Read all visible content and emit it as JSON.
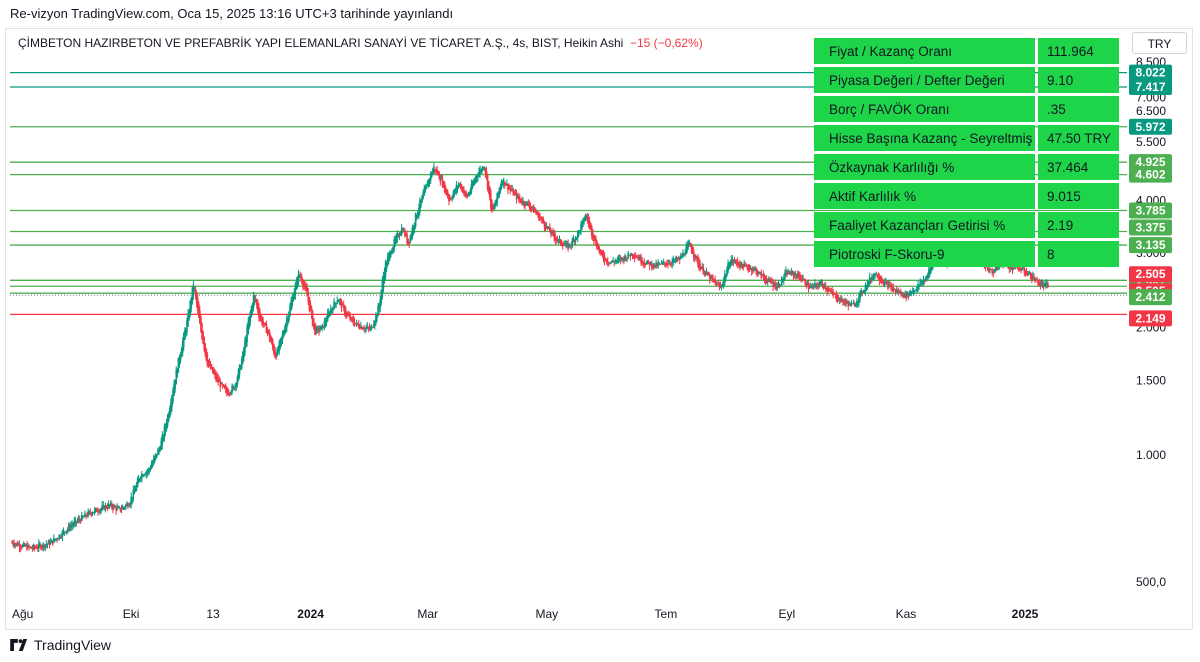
{
  "header": {
    "published": "Re-vizyon TradingView.com, Oca 15, 2025 13:16 UTC+3 tarihinde yayınlandı",
    "symbol": "ÇİMBETON HAZIRBETON VE PREFABRİK YAPI ELEMANLARI SANAYİ VE TİCARET A.Ş., 4s, BIST, Heikin Ashi",
    "change": "−15 (−0,62%)",
    "currency": "TRY"
  },
  "table": [
    {
      "k": "Fiyat / Kazanç Oranı",
      "v": "111.964"
    },
    {
      "k": "Piyasa Değeri / Defter Değeri",
      "v": "9.10"
    },
    {
      "k": "Borç / FAVÖK Oranı",
      "v": ".35"
    },
    {
      "k": "Hisse Başına Kazanç - Seyreltmiş",
      "v": "47.50  TRY"
    },
    {
      "k": "Özkaynak Karlılığı %",
      "v": "37.464"
    },
    {
      "k": "Aktif Karlılık %",
      "v": "9.015"
    },
    {
      "k": "Faaliyet Kazançları Getirisi %",
      "v": "2.19"
    },
    {
      "k": "Piotroski F-Skoru-9",
      "v": "8"
    }
  ],
  "footer": {
    "brand": "TradingView"
  },
  "chart_data": {
    "type": "line",
    "style": "Heikin Ashi candles (4h)",
    "y_scale": "log",
    "ylim": [
      450,
      9200
    ],
    "y_ticks": [
      {
        "value": 8500,
        "label": "8.500"
      },
      {
        "value": 7500,
        "label": "7.500"
      },
      {
        "value": 7000,
        "label": "7.000"
      },
      {
        "value": 6500,
        "label": "6.500"
      },
      {
        "value": 5500,
        "label": "5.500"
      },
      {
        "value": 5000,
        "label": "5.000"
      },
      {
        "value": 4500,
        "label": "4.500"
      },
      {
        "value": 4000,
        "label": "4.000"
      },
      {
        "value": 3500,
        "label": "3.500"
      },
      {
        "value": 3000,
        "label": "3.000"
      },
      {
        "value": 2500,
        "label": "2.500"
      },
      {
        "value": 2000,
        "label": "2.000"
      },
      {
        "value": 1500,
        "label": "1.500"
      },
      {
        "value": 1000,
        "label": "1.000"
      },
      {
        "value": 500,
        "label": "500,0"
      }
    ],
    "x_ticks": [
      {
        "t": 0,
        "label": "Ağu",
        "bold": false
      },
      {
        "t": 61,
        "label": "Eki",
        "bold": false
      },
      {
        "t": 103,
        "label": "13",
        "bold": false
      },
      {
        "t": 153,
        "label": "2024",
        "bold": true
      },
      {
        "t": 213,
        "label": "Mar",
        "bold": false
      },
      {
        "t": 274,
        "label": "May",
        "bold": false
      },
      {
        "t": 335,
        "label": "Tem",
        "bold": false
      },
      {
        "t": 397,
        "label": "Eyl",
        "bold": false
      },
      {
        "t": 458,
        "label": "Kas",
        "bold": false
      },
      {
        "t": 519,
        "label": "2025",
        "bold": true
      }
    ],
    "x_range": [
      0,
      620
    ],
    "levels": [
      {
        "value": 8022,
        "label": "8.022",
        "color": "#089981"
      },
      {
        "value": 7417,
        "label": "7.417",
        "color": "#089981"
      },
      {
        "value": 5972,
        "label": "5.972",
        "color": "#4caf50"
      },
      {
        "value": 4925,
        "label": "4.925",
        "color": "#4caf50"
      },
      {
        "value": 4602,
        "label": "4.602",
        "color": "#4caf50"
      },
      {
        "value": 3785,
        "label": "3.785",
        "color": "#4caf50"
      },
      {
        "value": 3375,
        "label": "3.375",
        "color": "#4caf50"
      },
      {
        "value": 3135,
        "label": "3.135",
        "color": "#4caf50"
      },
      {
        "value": 2587,
        "label": "2.587",
        "color": "#4caf50"
      },
      {
        "value": 2505,
        "label": "2.505",
        "color": "#4caf50"
      },
      {
        "value": 2412,
        "label": "2.412",
        "color": "#4caf50"
      },
      {
        "value": 2149,
        "label": "2.149",
        "color": "#f23645"
      }
    ],
    "current_price": {
      "value": 2505,
      "label": "2.505",
      "color": "#f23645"
    },
    "prev_close": {
      "value": 2505,
      "label": "2.505",
      "color": "#f23645"
    },
    "close_series": [
      [
        0,
        620
      ],
      [
        10,
        600
      ],
      [
        20,
        620
      ],
      [
        30,
        680
      ],
      [
        40,
        730
      ],
      [
        50,
        760
      ],
      [
        55,
        740
      ],
      [
        60,
        770
      ],
      [
        66,
        900
      ],
      [
        70,
        920
      ],
      [
        76,
        1050
      ],
      [
        80,
        1250
      ],
      [
        85,
        1650
      ],
      [
        90,
        2100
      ],
      [
        93,
        2550
      ],
      [
        96,
        2050
      ],
      [
        100,
        1650
      ],
      [
        105,
        1500
      ],
      [
        110,
        1400
      ],
      [
        114,
        1450
      ],
      [
        118,
        1700
      ],
      [
        121,
        2050
      ],
      [
        124,
        2400
      ],
      [
        127,
        2100
      ],
      [
        131,
        1950
      ],
      [
        135,
        1700
      ],
      [
        139,
        1950
      ],
      [
        143,
        2300
      ],
      [
        147,
        2700
      ],
      [
        151,
        2400
      ],
      [
        155,
        1950
      ],
      [
        159,
        2000
      ],
      [
        163,
        2200
      ],
      [
        167,
        2350
      ],
      [
        171,
        2150
      ],
      [
        175,
        2050
      ],
      [
        180,
        2000
      ],
      [
        184,
        1980
      ],
      [
        188,
        2250
      ],
      [
        191,
        2800
      ],
      [
        196,
        3200
      ],
      [
        200,
        3450
      ],
      [
        203,
        3150
      ],
      [
        207,
        3700
      ],
      [
        212,
        4300
      ],
      [
        216,
        4800
      ],
      [
        220,
        4450
      ],
      [
        224,
        4000
      ],
      [
        229,
        4400
      ],
      [
        233,
        4050
      ],
      [
        238,
        4600
      ],
      [
        242,
        4850
      ],
      [
        246,
        3700
      ],
      [
        251,
        4500
      ],
      [
        255,
        4250
      ],
      [
        260,
        4000
      ],
      [
        265,
        3900
      ],
      [
        270,
        3650
      ],
      [
        276,
        3350
      ],
      [
        280,
        3200
      ],
      [
        285,
        3100
      ],
      [
        290,
        3350
      ],
      [
        294,
        3700
      ],
      [
        298,
        3250
      ],
      [
        302,
        2950
      ],
      [
        306,
        2850
      ],
      [
        312,
        2900
      ],
      [
        318,
        3000
      ],
      [
        324,
        2850
      ],
      [
        330,
        2800
      ],
      [
        336,
        2850
      ],
      [
        342,
        2900
      ],
      [
        347,
        3150
      ],
      [
        352,
        2800
      ],
      [
        358,
        2600
      ],
      [
        363,
        2480
      ],
      [
        368,
        2900
      ],
      [
        374,
        2800
      ],
      [
        380,
        2750
      ],
      [
        386,
        2600
      ],
      [
        392,
        2500
      ],
      [
        397,
        2700
      ],
      [
        403,
        2650
      ],
      [
        409,
        2480
      ],
      [
        415,
        2550
      ],
      [
        420,
        2400
      ],
      [
        426,
        2300
      ],
      [
        431,
        2250
      ],
      [
        437,
        2500
      ],
      [
        442,
        2700
      ],
      [
        447,
        2550
      ],
      [
        452,
        2450
      ],
      [
        458,
        2380
      ],
      [
        464,
        2500
      ],
      [
        469,
        2650
      ],
      [
        474,
        3050
      ],
      [
        479,
        2850
      ],
      [
        484,
        3000
      ],
      [
        488,
        3150
      ],
      [
        492,
        2900
      ],
      [
        497,
        2850
      ],
      [
        502,
        2700
      ],
      [
        507,
        2850
      ],
      [
        512,
        2780
      ],
      [
        517,
        2750
      ],
      [
        522,
        2650
      ],
      [
        527,
        2520
      ],
      [
        531,
        2505
      ]
    ]
  }
}
